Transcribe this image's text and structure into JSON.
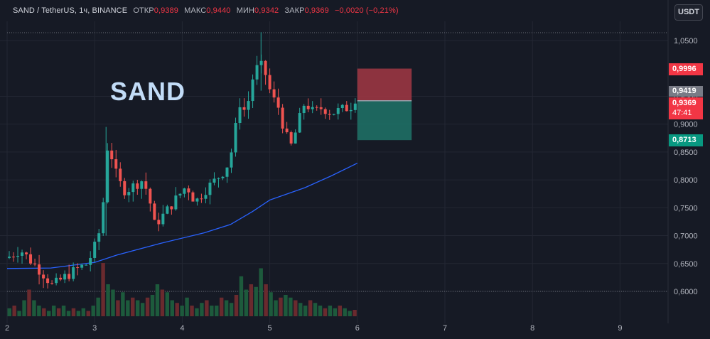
{
  "header": {
    "symbol": "SAND / TetherUS, 1ч, BINANCE",
    "open_label": "ОТКР",
    "open_value": "0,9389",
    "high_label": "МАКС",
    "high_value": "0,9440",
    "low_label": "МИН",
    "low_value": "0,9342",
    "close_label": "ЗАКР",
    "close_value": "0,9369",
    "change": "−0,0020 (−0,21%)"
  },
  "currency_button": "USDT",
  "chart_title": "SAND",
  "colors": {
    "background": "#161a25",
    "grid": "#232733",
    "up": "#26a69a",
    "down": "#ef5350",
    "ma_line": "#2962ff",
    "stop_zone": "#a23844",
    "target_zone": "#1f7468",
    "up_volume": "#1d5a3c",
    "down_volume": "#6a2a2e"
  },
  "price_tags": {
    "stop": "0,9996",
    "entry": "0,9419",
    "last": "0,9369",
    "countdown": "47:41",
    "target": "0,8713"
  },
  "chart_data": {
    "type": "candlestick",
    "symbol": "SAND / TetherUS",
    "timeframe": "1ч",
    "exchange": "BINANCE",
    "y_axis_labels": [
      "1,0500",
      "0,9500",
      "0,9000",
      "0,8500",
      "0,8000",
      "0,7500",
      "0,7000",
      "0,6500",
      "0,6000"
    ],
    "y_axis_values": [
      1.05,
      0.95,
      0.9,
      0.85,
      0.8,
      0.75,
      0.7,
      0.65,
      0.6
    ],
    "x_axis_labels": [
      "2",
      "3",
      "4",
      "5",
      "6",
      "7",
      "8",
      "9"
    ],
    "x_axis_values": [
      2,
      3,
      4,
      5,
      6,
      7,
      8,
      9
    ],
    "x_range": [
      2,
      9.9
    ],
    "y_range": [
      0.56,
      1.07
    ],
    "ohlc_close_path": [
      [
        2.0,
        0.66
      ],
      [
        2.15,
        0.675
      ],
      [
        2.3,
        0.65
      ],
      [
        2.42,
        0.63
      ],
      [
        2.52,
        0.61
      ],
      [
        2.65,
        0.625
      ],
      [
        2.8,
        0.64
      ],
      [
        2.92,
        0.65
      ],
      [
        3.0,
        0.68
      ],
      [
        3.08,
        0.72
      ],
      [
        3.14,
        0.86
      ],
      [
        3.2,
        0.84
      ],
      [
        3.26,
        0.8
      ],
      [
        3.35,
        0.78
      ],
      [
        3.45,
        0.79
      ],
      [
        3.55,
        0.8
      ],
      [
        3.62,
        0.77
      ],
      [
        3.68,
        0.72
      ],
      [
        3.75,
        0.73
      ],
      [
        3.85,
        0.75
      ],
      [
        3.95,
        0.77
      ],
      [
        4.05,
        0.79
      ],
      [
        4.15,
        0.76
      ],
      [
        4.25,
        0.78
      ],
      [
        4.38,
        0.8
      ],
      [
        4.5,
        0.82
      ],
      [
        4.58,
        0.86
      ],
      [
        4.65,
        0.94
      ],
      [
        4.73,
        0.92
      ],
      [
        4.8,
        0.98
      ],
      [
        4.88,
        1.01
      ],
      [
        4.95,
        0.99
      ],
      [
        5.02,
        0.95
      ],
      [
        5.1,
        0.93
      ],
      [
        5.18,
        0.88
      ],
      [
        5.25,
        0.86
      ],
      [
        5.32,
        0.9
      ],
      [
        5.4,
        0.94
      ],
      [
        5.5,
        0.92
      ],
      [
        5.6,
        0.93
      ],
      [
        5.7,
        0.92
      ],
      [
        5.8,
        0.925
      ],
      [
        5.9,
        0.93
      ],
      [
        5.97,
        0.937
      ]
    ],
    "moving_average": {
      "name": "MA",
      "points": [
        [
          2.0,
          0.641
        ],
        [
          2.5,
          0.642
        ],
        [
          3.0,
          0.652
        ],
        [
          3.25,
          0.665
        ],
        [
          3.75,
          0.686
        ],
        [
          4.25,
          0.705
        ],
        [
          4.55,
          0.72
        ],
        [
          4.8,
          0.743
        ],
        [
          5.0,
          0.764
        ],
        [
          5.4,
          0.786
        ],
        [
          5.7,
          0.807
        ],
        [
          6.0,
          0.83
        ]
      ]
    },
    "position": {
      "type": "short",
      "start": 6.0,
      "end": 6.62,
      "stop_loss": 0.9996,
      "entry": 0.9419,
      "take_profit": 0.8713
    },
    "current_price": 0.9369,
    "volume_relative": [
      0.15,
      0.2,
      0.1,
      0.3,
      0.5,
      0.3,
      0.2,
      0.15,
      0.1,
      0.2,
      0.15,
      0.2,
      0.1,
      0.15,
      0.1,
      0.15,
      0.1,
      0.2,
      0.35,
      1.0,
      0.6,
      0.5,
      0.3,
      0.45,
      0.3,
      0.35,
      0.3,
      0.25,
      0.35,
      0.4,
      0.6,
      0.5,
      0.45,
      0.3,
      0.25,
      0.2,
      0.35,
      0.2,
      0.15,
      0.25,
      0.3,
      0.2,
      0.2,
      0.35,
      0.3,
      0.25,
      0.4,
      0.75,
      0.5,
      0.6,
      0.55,
      0.9,
      0.6,
      0.45,
      0.3,
      0.35,
      0.4,
      0.35,
      0.3,
      0.25,
      0.2,
      0.3,
      0.25,
      0.2,
      0.15,
      0.2,
      0.15,
      0.2,
      0.15,
      0.1,
      0.12
    ]
  }
}
